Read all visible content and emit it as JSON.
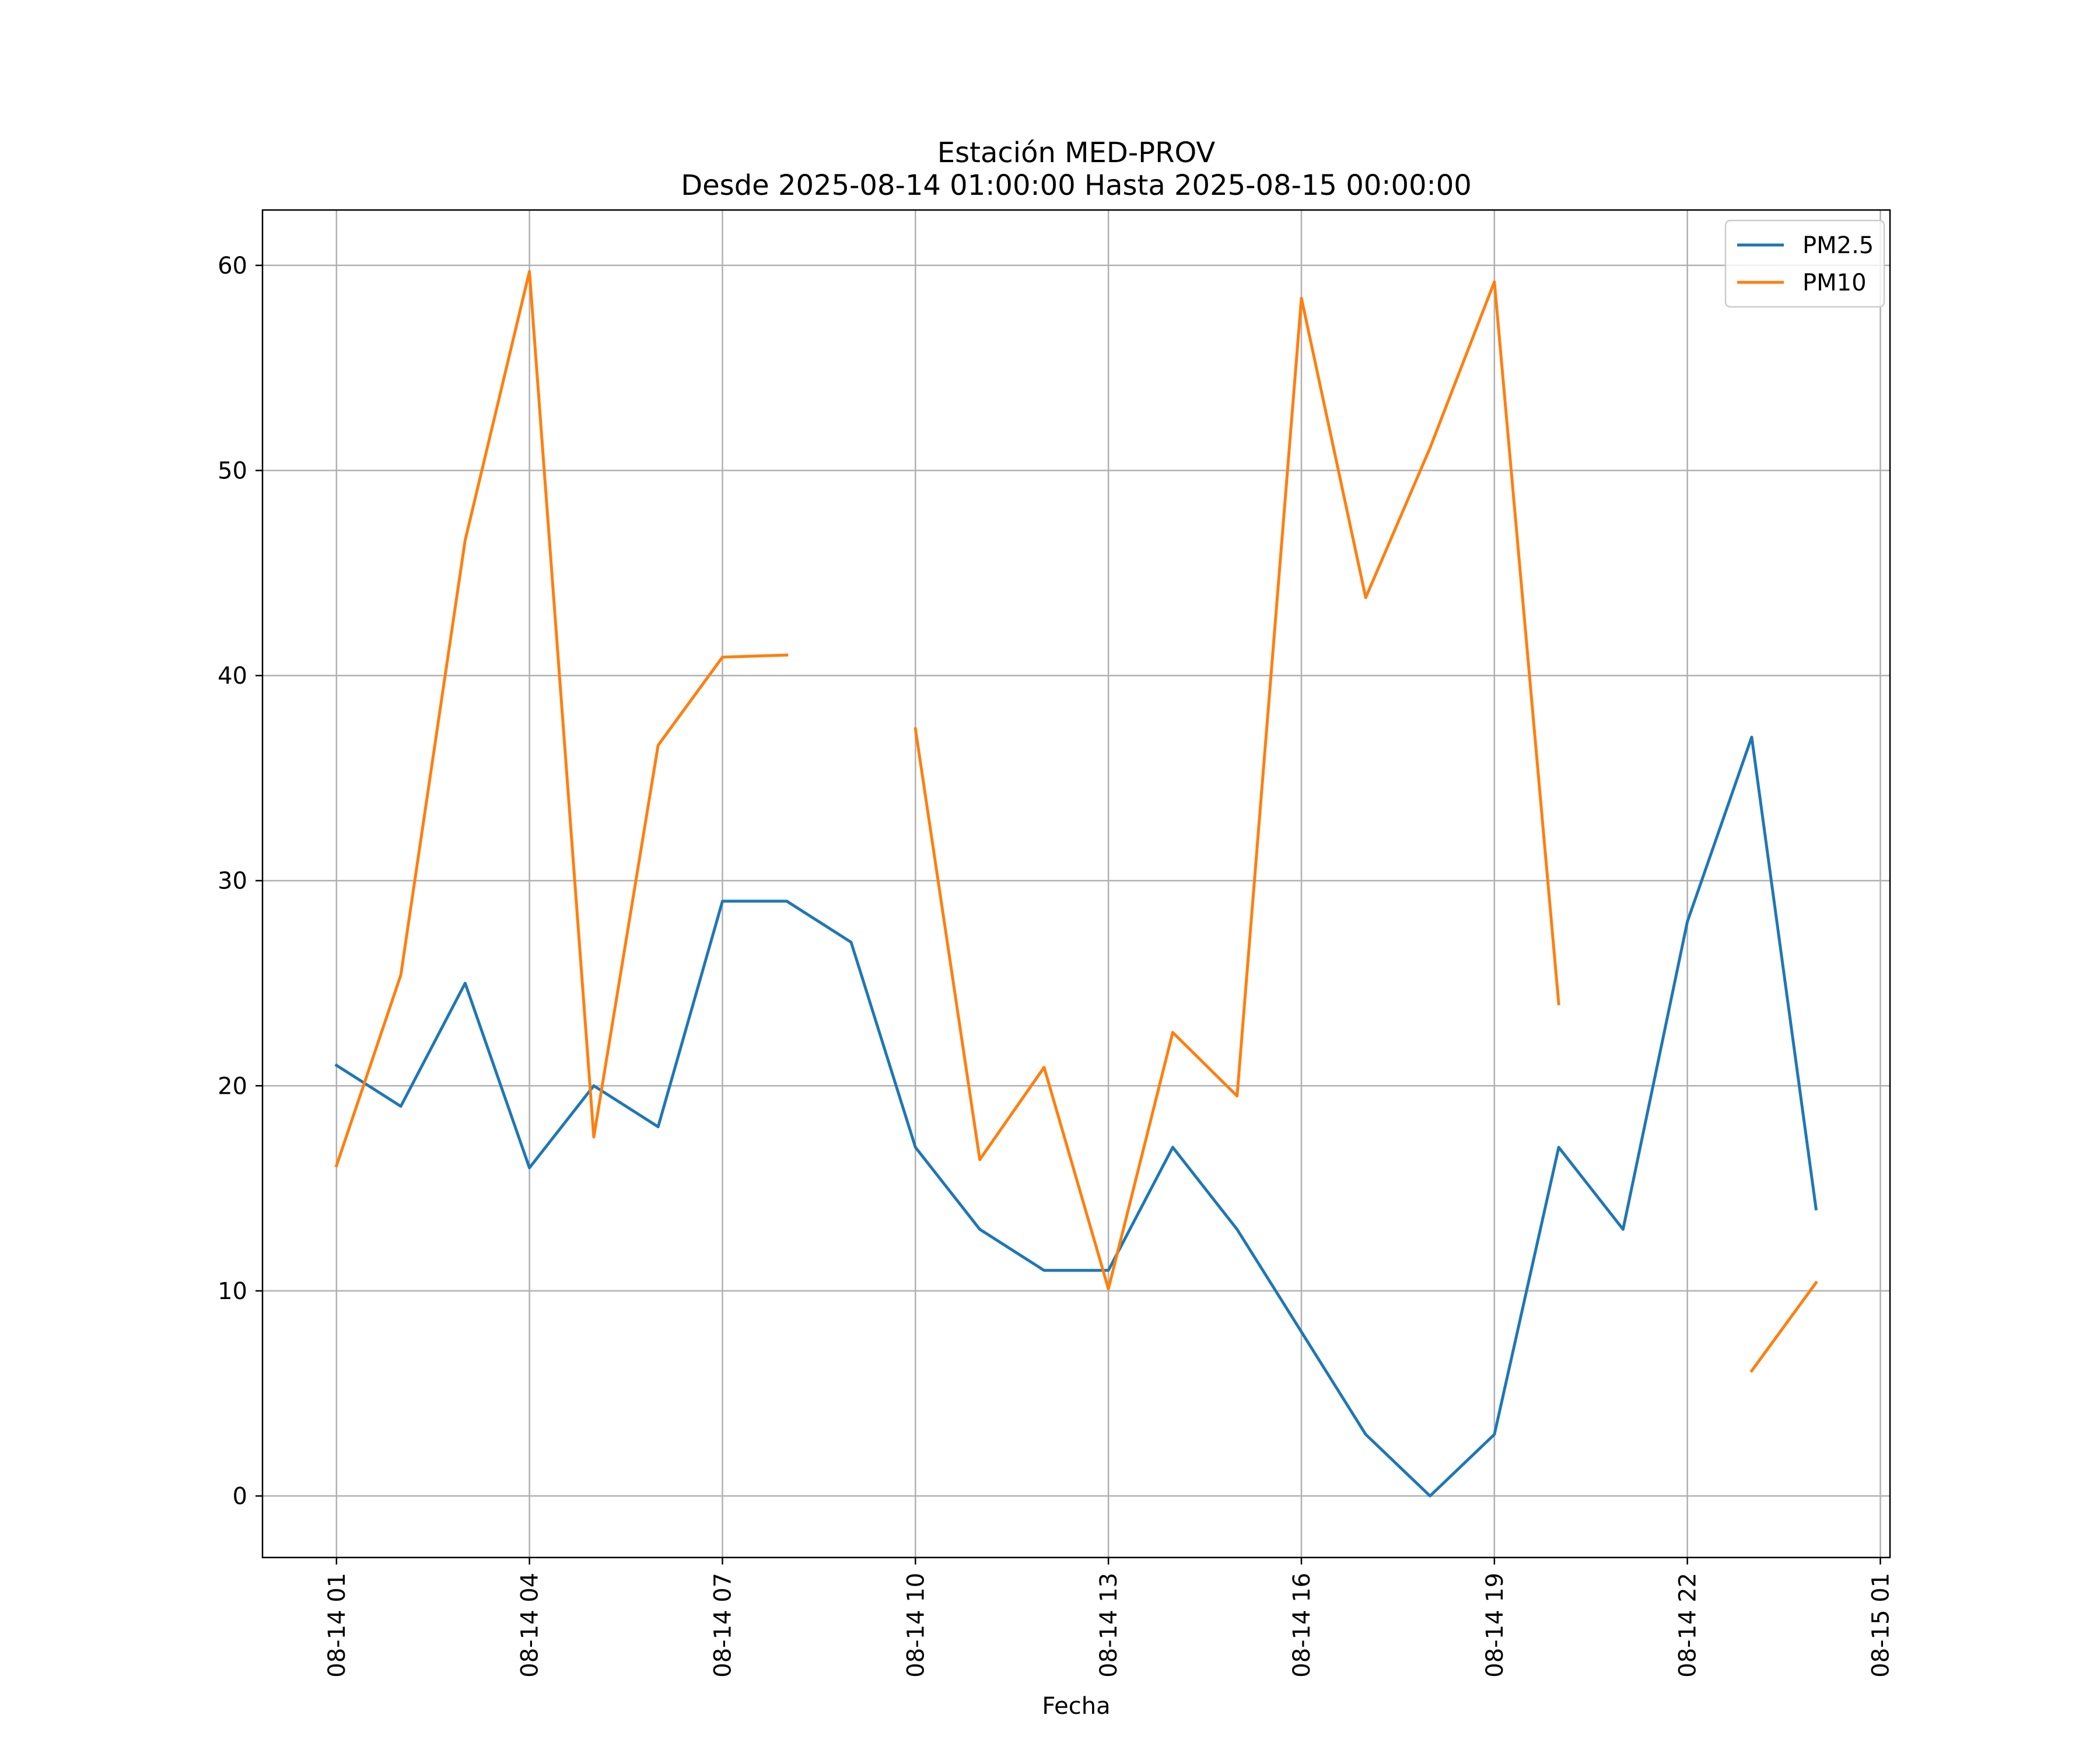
{
  "chart_data": {
    "type": "line",
    "title": "Estación MED-PROV\nDesde 2025-08-14 01:00:00 Hasta 2025-08-15 00:00:00",
    "title_lines": [
      "Estación MED-PROV",
      "Desde 2025-08-14 01:00:00 Hasta 2025-08-15 00:00:00"
    ],
    "xlabel": "Fecha",
    "ylabel": "",
    "x": [
      "2025-08-14 01:00",
      "2025-08-14 02:00",
      "2025-08-14 03:00",
      "2025-08-14 04:00",
      "2025-08-14 05:00",
      "2025-08-14 06:00",
      "2025-08-14 07:00",
      "2025-08-14 08:00",
      "2025-08-14 09:00",
      "2025-08-14 10:00",
      "2025-08-14 11:00",
      "2025-08-14 12:00",
      "2025-08-14 13:00",
      "2025-08-14 14:00",
      "2025-08-14 15:00",
      "2025-08-14 16:00",
      "2025-08-14 17:00",
      "2025-08-14 18:00",
      "2025-08-14 19:00",
      "2025-08-14 20:00",
      "2025-08-14 21:00",
      "2025-08-14 22:00",
      "2025-08-14 23:00",
      "2025-08-15 00:00"
    ],
    "series": [
      {
        "name": "PM2.5",
        "color": "#1f77b4",
        "values": [
          21,
          19,
          25,
          16,
          20,
          18,
          29,
          29,
          27,
          17,
          13,
          11,
          11,
          17,
          13,
          8,
          3,
          0,
          3,
          17,
          13,
          28,
          37,
          14
        ]
      },
      {
        "name": "PM10",
        "color": "#ff7f0e",
        "values": [
          16.1,
          25.4,
          46.6,
          59.7,
          17.5,
          36.6,
          40.9,
          41.0,
          null,
          37.4,
          16.4,
          20.9,
          10.1,
          22.6,
          19.5,
          58.4,
          43.8,
          51.1,
          59.2,
          24.0,
          null,
          null,
          6.1,
          10.4
        ]
      }
    ],
    "xlim": [
      "2025-08-13 23:51",
      "2025-08-15 01:09"
    ],
    "ylim": [
      -3,
      62.7
    ],
    "yticks": [
      0,
      10,
      20,
      30,
      40,
      50,
      60
    ],
    "xticks": [
      {
        "x": "2025-08-14 01:00",
        "label": "08-14 01"
      },
      {
        "x": "2025-08-14 04:00",
        "label": "08-14 04"
      },
      {
        "x": "2025-08-14 07:00",
        "label": "08-14 07"
      },
      {
        "x": "2025-08-14 10:00",
        "label": "08-14 10"
      },
      {
        "x": "2025-08-14 13:00",
        "label": "08-14 13"
      },
      {
        "x": "2025-08-14 16:00",
        "label": "08-14 16"
      },
      {
        "x": "2025-08-14 19:00",
        "label": "08-14 19"
      },
      {
        "x": "2025-08-14 22:00",
        "label": "08-14 22"
      },
      {
        "x": "2025-08-15 01:00",
        "label": "08-15 01"
      }
    ],
    "grid": true,
    "legend": "upper right"
  }
}
